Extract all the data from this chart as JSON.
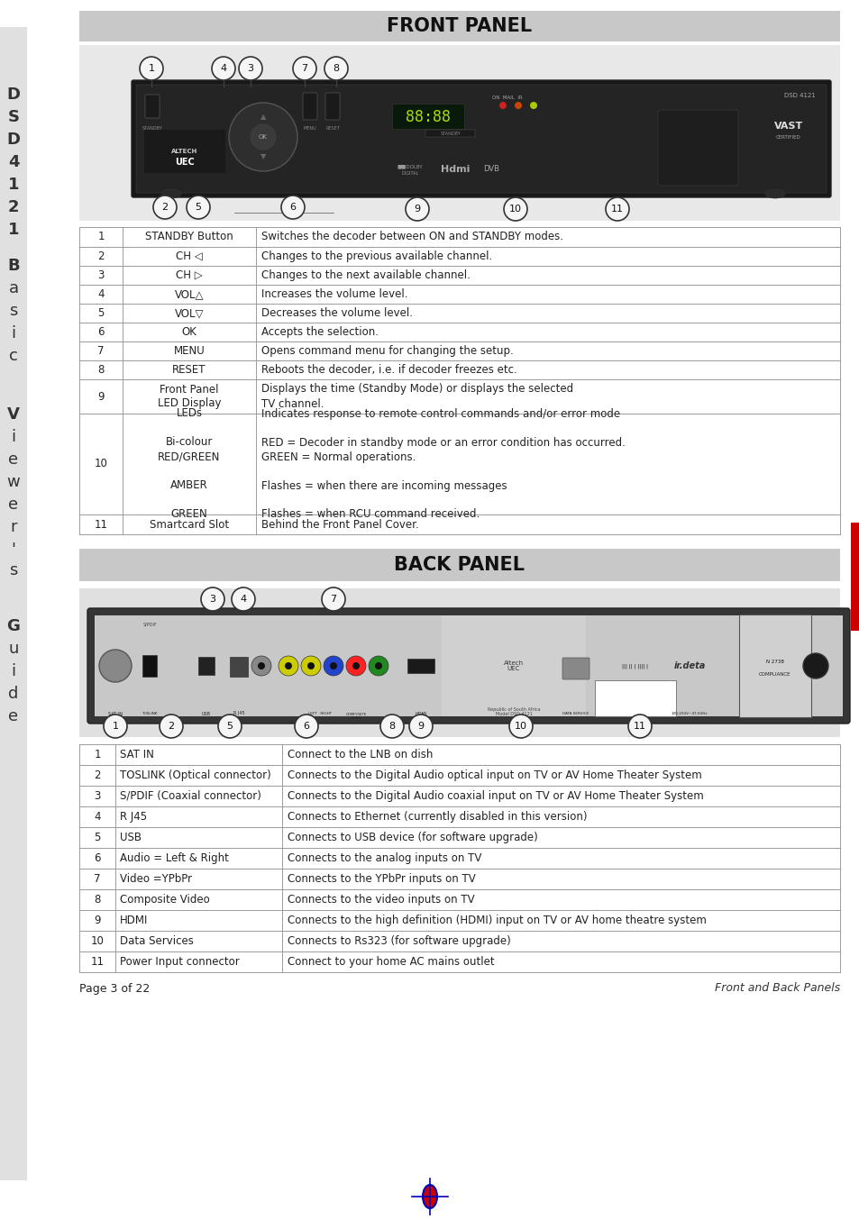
{
  "page_bg": "#ffffff",
  "header_bg": "#cccccc",
  "front_panel_title": "FRONT PANEL",
  "back_panel_title": "BACK PANEL",
  "front_table": [
    [
      "1",
      "STANDBY Button",
      "Switches the decoder between ON and STANDBY modes."
    ],
    [
      "2",
      "CH ◁",
      "Changes to the previous available channel."
    ],
    [
      "3",
      "CH ▷",
      "Changes to the next available channel."
    ],
    [
      "4",
      "VOL△",
      "Increases the volume level."
    ],
    [
      "5",
      "VOL▽",
      "Decreases the volume level."
    ],
    [
      "6",
      "OK",
      "Accepts the selection."
    ],
    [
      "7",
      "MENU",
      "Opens command menu for changing the setup."
    ],
    [
      "8",
      "RESET",
      "Reboots the decoder, i.e. if decoder freezes etc."
    ],
    [
      "9",
      "Front Panel\nLED Display",
      "Displays the time (Standby Mode) or displays the selected\nTV channel."
    ],
    [
      "10",
      "LEDs\n\nBi-colour\nRED/GREEN\n\nAMBER\n\nGREEN",
      "Indicates response to remote control commands and/or error mode\n\nRED = Decoder in standby mode or an error condition has occurred.\nGREEN = Normal operations.\n\nFlashes = when there are incoming messages\n\nFlashes = when RCU command received."
    ],
    [
      "11",
      "Smartcard Slot",
      "Behind the Front Panel Cover."
    ]
  ],
  "back_table": [
    [
      "1",
      "SAT IN",
      "Connect to the LNB on dish"
    ],
    [
      "2",
      "TOSLINK (Optical connector)",
      "Connects to the Digital Audio optical input on TV or AV Home Theater System"
    ],
    [
      "3",
      "S/PDIF (Coaxial connector)",
      "Connects to the Digital Audio coaxial input on TV or AV Home Theater System"
    ],
    [
      "4",
      "R J45",
      "Connects to Ethernet (currently disabled in this version)"
    ],
    [
      "5",
      "USB",
      "Connects to USB device (for software upgrade)"
    ],
    [
      "6",
      "Audio = Left & Right",
      "Connects to the analog inputs on TV"
    ],
    [
      "7",
      "Video =YPbPr",
      "Connects to the YPbPr inputs on TV"
    ],
    [
      "8",
      "Composite Video",
      "Connects to the video inputs on TV"
    ],
    [
      "9",
      "HDMI",
      "Connects to the high definition (HDMI) input on TV or AV home theatre system"
    ],
    [
      "10",
      "Data Services",
      "Connects to Rs323 (for software upgrade)"
    ],
    [
      "11",
      "Power Input connector",
      "Connect to your home AC mains outlet"
    ]
  ],
  "footer_left": "Page 3 of 22",
  "footer_right": "Front and Back Panels",
  "sidebar_chars": [
    "D",
    "S",
    "D",
    "4",
    "1",
    "2",
    "1",
    "",
    "B",
    "a",
    "s",
    "i",
    "c",
    "",
    "V",
    "i",
    "e",
    "w",
    "e",
    "r",
    "'",
    "s",
    "",
    "G",
    "u",
    "i",
    "d",
    "e"
  ],
  "sidebar_y": [
    105,
    130,
    155,
    180,
    205,
    230,
    255,
    270,
    295,
    320,
    345,
    370,
    395,
    420,
    460,
    485,
    510,
    535,
    560,
    585,
    610,
    633,
    655,
    695,
    720,
    745,
    770,
    795
  ]
}
